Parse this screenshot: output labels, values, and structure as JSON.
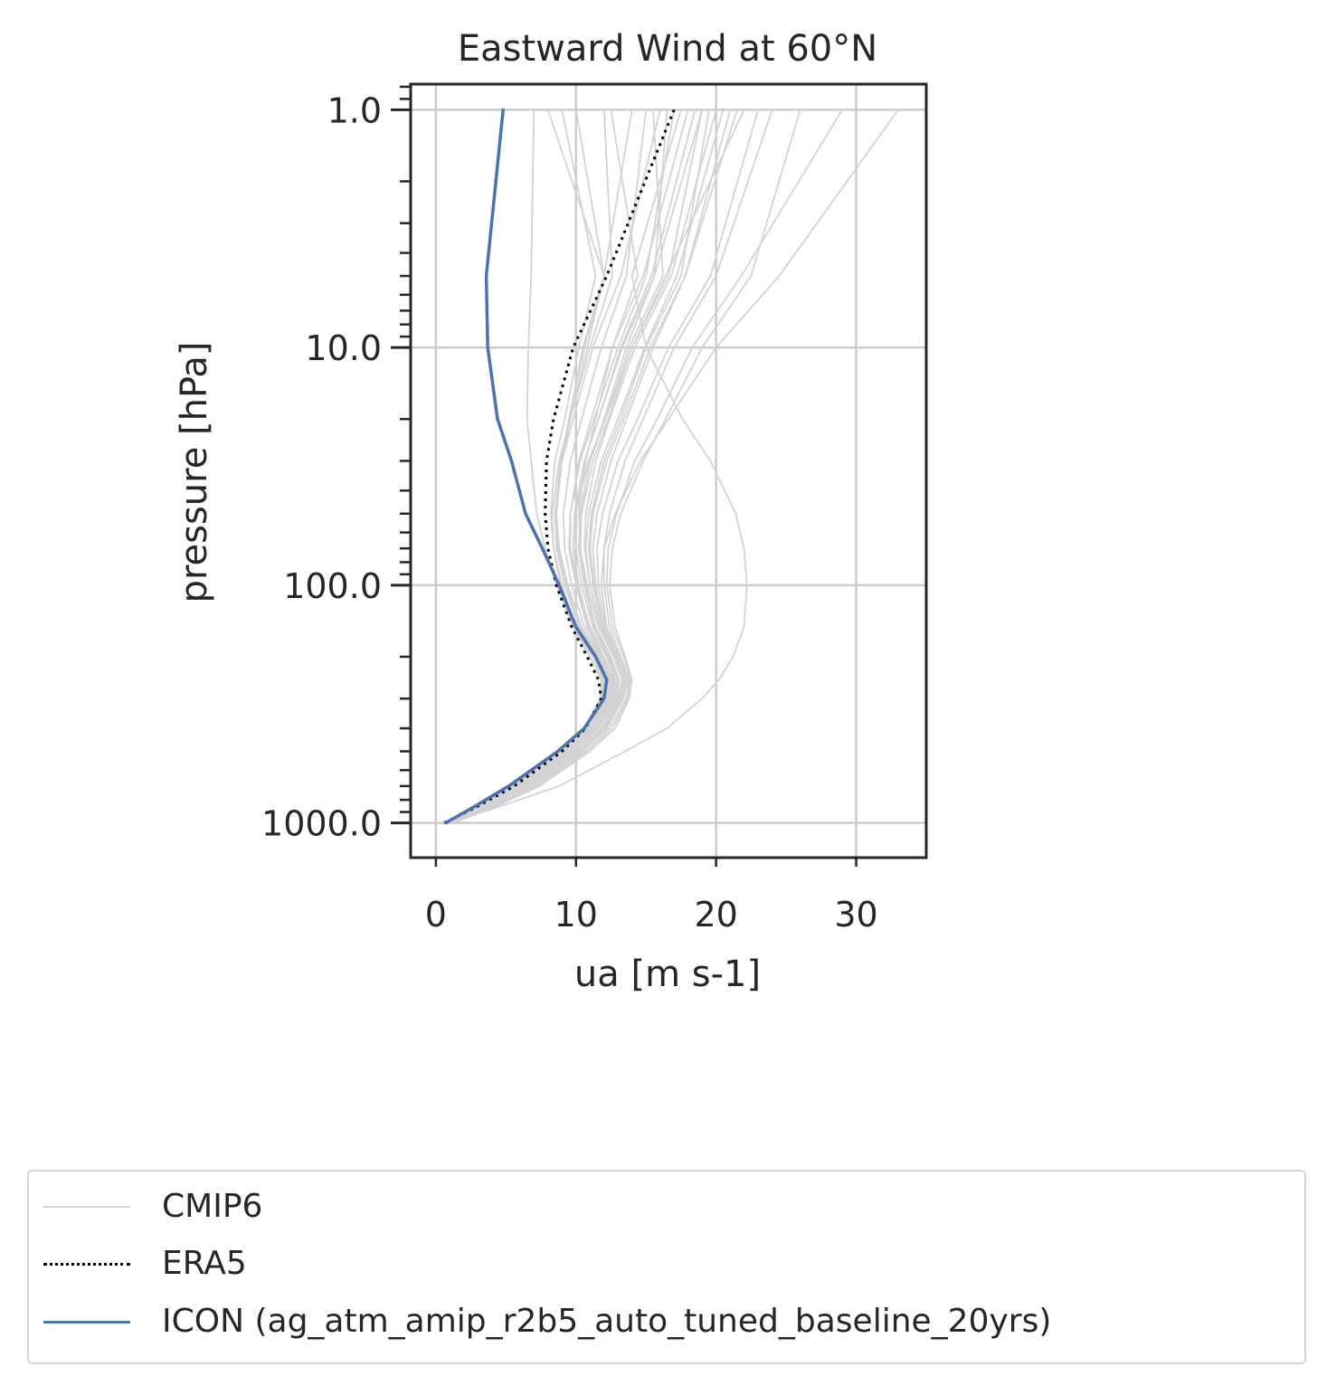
{
  "chart_data": {
    "type": "line",
    "title": "Eastward Wind at 60°N",
    "xlabel": "ua [m s-1]",
    "ylabel": "pressure [hPa]",
    "xlim": [
      -1.8,
      35
    ],
    "xticks": [
      0,
      10,
      20,
      30
    ],
    "xtick_labels": [
      "0",
      "10",
      "20",
      "30"
    ],
    "ylim": [
      1.4,
      0.78
    ],
    "yscale": "log",
    "yaxis_inverted": true,
    "yticks": [
      1,
      10,
      100,
      1000
    ],
    "ytick_labels": [
      "1.0",
      "10.0",
      "100.0",
      "1000.0"
    ],
    "grid": true,
    "legend_position": "below",
    "pressure_levels": [
      1000,
      850,
      700,
      500,
      400,
      300,
      250,
      200,
      150,
      100,
      70,
      50,
      30,
      20,
      10,
      5,
      1
    ],
    "series": [
      {
        "name": "CMIP6",
        "color": "#d3d3d3",
        "style": "solid",
        "runs": [
          [
            0.5,
            3.0,
            5.5,
            8.8,
            10.5,
            11.8,
            12.0,
            11.2,
            9.8,
            8.6,
            7.8,
            7.2,
            6.8,
            6.5,
            6.6,
            6.8,
            7.0
          ],
          [
            0.7,
            3.3,
            6.0,
            9.2,
            11.0,
            12.2,
            12.4,
            11.7,
            10.4,
            9.4,
            8.8,
            8.6,
            8.9,
            9.5,
            10.5,
            12.0,
            14.0
          ],
          [
            0.9,
            3.6,
            6.4,
            9.7,
            11.5,
            12.8,
            13.0,
            12.4,
            11.3,
            10.6,
            10.2,
            10.3,
            11.0,
            12.0,
            13.6,
            15.6,
            19.0
          ],
          [
            1.1,
            3.9,
            6.8,
            10.3,
            12.1,
            13.4,
            13.6,
            13.0,
            12.0,
            11.4,
            11.2,
            11.5,
            12.5,
            13.6,
            15.5,
            17.8,
            21.0
          ],
          [
            0.6,
            3.1,
            5.7,
            9.0,
            10.7,
            11.9,
            12.1,
            11.4,
            10.2,
            9.2,
            8.6,
            8.5,
            9.0,
            9.8,
            11.2,
            13.2,
            16.0
          ],
          [
            0.8,
            3.5,
            6.2,
            9.5,
            11.3,
            12.6,
            12.8,
            12.2,
            11.0,
            10.1,
            9.6,
            9.6,
            10.2,
            11.1,
            12.6,
            14.8,
            18.0
          ],
          [
            1.0,
            3.8,
            6.6,
            10.0,
            11.8,
            13.1,
            13.4,
            12.8,
            11.8,
            11.0,
            10.6,
            10.7,
            11.4,
            12.4,
            14.2,
            16.8,
            20.0
          ],
          [
            0.7,
            3.2,
            5.9,
            9.3,
            11.1,
            12.3,
            12.5,
            11.8,
            10.6,
            9.7,
            9.2,
            9.1,
            9.6,
            10.4,
            11.8,
            13.6,
            15.0
          ],
          [
            1.2,
            4.1,
            7.1,
            10.6,
            12.4,
            13.6,
            13.8,
            13.2,
            12.4,
            12.0,
            12.0,
            12.4,
            13.5,
            14.8,
            17.0,
            20.0,
            24.0
          ],
          [
            0.9,
            3.7,
            6.5,
            9.8,
            11.6,
            12.9,
            13.1,
            12.5,
            11.4,
            10.7,
            10.3,
            10.4,
            11.2,
            12.3,
            14.0,
            16.4,
            22.0
          ],
          [
            0.6,
            3.0,
            5.5,
            8.9,
            10.6,
            11.7,
            11.8,
            11.0,
            9.8,
            8.9,
            8.4,
            8.3,
            8.8,
            9.6,
            11.0,
            12.6,
            12.0
          ],
          [
            1.3,
            4.3,
            7.4,
            11.0,
            12.8,
            13.8,
            14.0,
            13.5,
            12.8,
            12.4,
            12.6,
            13.2,
            14.8,
            16.4,
            19.0,
            22.5,
            26.0
          ],
          [
            0.8,
            3.4,
            6.1,
            9.4,
            11.2,
            12.4,
            12.6,
            11.9,
            10.8,
            10.0,
            9.5,
            9.6,
            10.3,
            11.3,
            13.0,
            15.0,
            17.0
          ],
          [
            1.0,
            3.9,
            6.7,
            10.1,
            11.9,
            13.2,
            13.5,
            12.9,
            11.9,
            11.2,
            10.9,
            11.1,
            12.0,
            13.2,
            15.0,
            17.5,
            19.5
          ],
          [
            0.7,
            3.3,
            5.9,
            9.2,
            11.0,
            12.2,
            12.4,
            11.6,
            10.4,
            9.4,
            8.8,
            8.6,
            9.0,
            9.6,
            10.8,
            12.0,
            10.0
          ],
          [
            1.1,
            4.0,
            6.9,
            10.4,
            12.2,
            13.4,
            13.7,
            13.1,
            12.1,
            11.6,
            11.5,
            11.9,
            13.0,
            14.4,
            16.6,
            19.6,
            23.0
          ],
          [
            0.9,
            3.6,
            6.3,
            9.6,
            11.4,
            12.7,
            12.9,
            12.3,
            11.2,
            10.4,
            10.0,
            10.0,
            10.6,
            11.6,
            13.2,
            15.4,
            18.5
          ],
          [
            0.6,
            3.1,
            5.6,
            8.9,
            10.6,
            11.8,
            11.9,
            11.2,
            10.0,
            9.0,
            8.4,
            8.2,
            8.5,
            9.2,
            10.2,
            11.4,
            9.0
          ],
          [
            1.2,
            4.2,
            7.2,
            10.8,
            12.6,
            13.7,
            13.9,
            13.4,
            12.6,
            12.2,
            12.3,
            12.9,
            14.2,
            15.8,
            18.3,
            21.8,
            29.0
          ],
          [
            0.8,
            3.5,
            6.2,
            9.5,
            11.3,
            12.5,
            12.7,
            12.0,
            10.9,
            10.2,
            9.8,
            9.9,
            10.6,
            11.6,
            13.3,
            15.6,
            16.5
          ],
          [
            1.0,
            3.8,
            6.6,
            10.0,
            11.8,
            13.0,
            13.3,
            12.7,
            11.7,
            11.0,
            10.7,
            10.9,
            11.8,
            13.0,
            14.9,
            17.2,
            20.5
          ],
          [
            0.7,
            3.2,
            5.8,
            9.1,
            10.9,
            12.1,
            12.3,
            11.5,
            10.3,
            9.3,
            8.7,
            8.5,
            8.9,
            9.5,
            10.6,
            12.0,
            8.0
          ],
          [
            1.1,
            3.9,
            6.8,
            10.2,
            12.0,
            13.3,
            13.5,
            13.0,
            12.0,
            11.3,
            11.0,
            11.2,
            12.2,
            13.4,
            15.3,
            17.8,
            21.5
          ],
          [
            0.9,
            3.6,
            6.4,
            9.7,
            11.5,
            12.8,
            13.0,
            12.4,
            11.3,
            10.6,
            10.2,
            10.3,
            11.0,
            12.1,
            13.8,
            16.2,
            15.5
          ],
          [
            1.0,
            4.6,
            8.8,
            13.5,
            16.5,
            19.0,
            20.2,
            21.2,
            22.0,
            22.2,
            22.0,
            21.4,
            19.6,
            17.6,
            15.0,
            14.0,
            17.5
          ],
          [
            0.9,
            3.7,
            6.6,
            10.1,
            12.0,
            13.3,
            13.6,
            13.1,
            12.2,
            11.8,
            12.0,
            12.8,
            14.6,
            16.6,
            20.0,
            24.5,
            33.0
          ],
          [
            1.1,
            3.8,
            6.7,
            10.1,
            11.9,
            13.1,
            13.3,
            12.7,
            11.6,
            10.8,
            10.3,
            10.2,
            10.7,
            11.4,
            12.6,
            14.4,
            12.5
          ],
          [
            0.8,
            3.4,
            6.0,
            9.3,
            11.1,
            12.3,
            12.5,
            11.9,
            10.8,
            10.1,
            9.8,
            10.0,
            10.9,
            12.1,
            14.0,
            16.6,
            19.0
          ]
        ]
      },
      {
        "name": "ERA5",
        "color": "#000000",
        "style": "dotted",
        "values": [
          0.6,
          3.0,
          5.6,
          9.0,
          10.7,
          11.8,
          11.6,
          10.8,
          9.7,
          8.6,
          8.0,
          7.8,
          7.9,
          8.4,
          9.8,
          12.2,
          17.0
        ]
      },
      {
        "name": "ICON (ag_atm_amip_r2b5_auto_tuned_baseline_20yrs)",
        "color": "#4c72b0",
        "style": "solid",
        "values": [
          0.7,
          2.8,
          5.2,
          8.7,
          10.6,
          12.0,
          12.2,
          11.4,
          10.0,
          8.8,
          7.6,
          6.4,
          5.4,
          4.4,
          3.7,
          3.6,
          4.8
        ]
      }
    ]
  }
}
